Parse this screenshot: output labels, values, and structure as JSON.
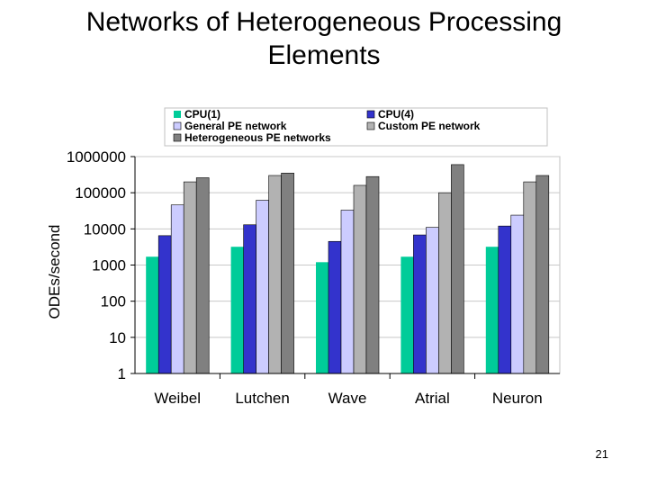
{
  "slide": {
    "title_line1": "Networks of Heterogeneous Processing",
    "title_line2": "Elements",
    "page_number": "21"
  },
  "chart_data": {
    "type": "bar",
    "title": "",
    "xlabel": "",
    "ylabel": "ODEs/second",
    "y_scale": "log",
    "ylim": [
      1,
      1000000
    ],
    "yticks": [
      1,
      10,
      100,
      1000,
      10000,
      100000,
      1000000
    ],
    "ytick_labels": [
      "1",
      "10",
      "100",
      "1000",
      "10000",
      "100000",
      "1000000"
    ],
    "grid": "horizontal",
    "legend_position": "top",
    "categories": [
      "Weibel",
      "Lutchen",
      "Wave",
      "Atrial",
      "Neuron"
    ],
    "series": [
      {
        "name": "CPU(1)",
        "color": "#00cc99",
        "values": [
          1700,
          3200,
          1200,
          1700,
          3200
        ]
      },
      {
        "name": "CPU(4)",
        "color": "#3333cc",
        "values": [
          6500,
          13000,
          4500,
          6800,
          12000
        ]
      },
      {
        "name": "General PE network",
        "color": "#ccccff",
        "values": [
          46000,
          62000,
          33000,
          11000,
          24000
        ]
      },
      {
        "name": "Custom PE network",
        "color": "#b2b2b2",
        "values": [
          200000,
          300000,
          160000,
          100000,
          200000
        ]
      },
      {
        "name": "Heterogeneous PE networks",
        "color": "#808080",
        "values": [
          260000,
          350000,
          280000,
          600000,
          300000
        ]
      }
    ]
  }
}
